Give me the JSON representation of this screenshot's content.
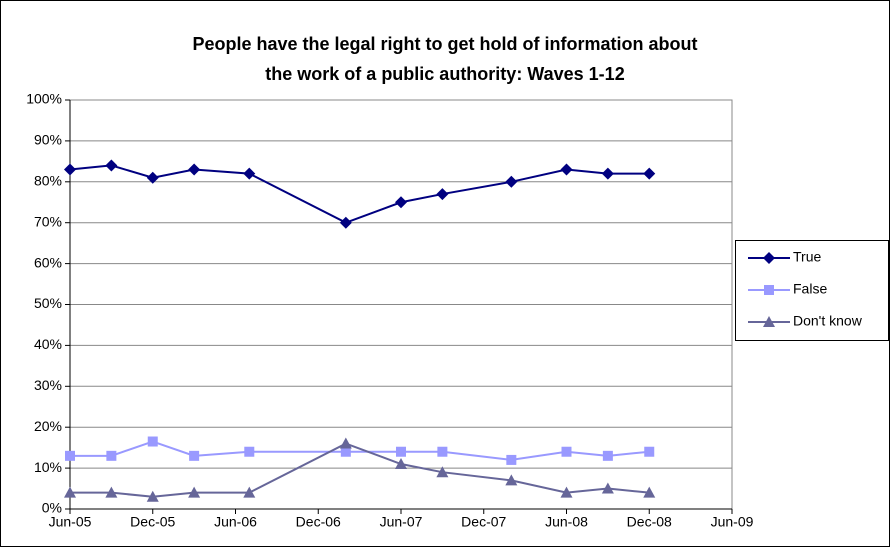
{
  "chart_data": {
    "type": "line",
    "title": [
      "People have the legal right to get hold of information about",
      "the work of a public authority: Waves 1-12"
    ],
    "x": [
      "2005-06",
      "2005-09",
      "2005-12",
      "2006-03",
      "2006-07",
      "2007-02",
      "2007-06",
      "2007-09",
      "2008-02",
      "2008-06",
      "2008-09",
      "2008-12"
    ],
    "series": [
      {
        "name": "True",
        "color": "#000080",
        "marker": "diamond",
        "values": [
          83,
          84,
          81,
          83,
          82,
          70,
          75,
          77,
          80,
          83,
          82,
          82
        ]
      },
      {
        "name": "False",
        "color": "#9999ff",
        "marker": "square",
        "values": [
          13,
          13,
          16.5,
          13,
          14,
          14,
          14,
          14,
          12,
          14,
          13,
          14
        ]
      },
      {
        "name": "Don't know",
        "color": "#666699",
        "marker": "triangle",
        "values": [
          4,
          4,
          3,
          4,
          4,
          16,
          11,
          9,
          7,
          4,
          5,
          4
        ]
      }
    ],
    "xlim": [
      "2005-06",
      "2009-06"
    ],
    "xticks": [
      {
        "value": "2005-06",
        "label": "Jun-05"
      },
      {
        "value": "2005-12",
        "label": "Dec-05"
      },
      {
        "value": "2006-06",
        "label": "Jun-06"
      },
      {
        "value": "2006-12",
        "label": "Dec-06"
      },
      {
        "value": "2007-06",
        "label": "Jun-07"
      },
      {
        "value": "2007-12",
        "label": "Dec-07"
      },
      {
        "value": "2008-06",
        "label": "Jun-08"
      },
      {
        "value": "2008-12",
        "label": "Dec-08"
      },
      {
        "value": "2009-06",
        "label": "Jun-09"
      }
    ],
    "ylim": [
      0,
      100
    ],
    "yticks": [
      {
        "value": 0,
        "label": "0%"
      },
      {
        "value": 10,
        "label": "10%"
      },
      {
        "value": 20,
        "label": "20%"
      },
      {
        "value": 30,
        "label": "30%"
      },
      {
        "value": 40,
        "label": "40%"
      },
      {
        "value": 50,
        "label": "50%"
      },
      {
        "value": 60,
        "label": "60%"
      },
      {
        "value": 70,
        "label": "70%"
      },
      {
        "value": 80,
        "label": "80%"
      },
      {
        "value": 90,
        "label": "90%"
      },
      {
        "value": 100,
        "label": "100%"
      }
    ],
    "grid": true,
    "legend": "right"
  }
}
